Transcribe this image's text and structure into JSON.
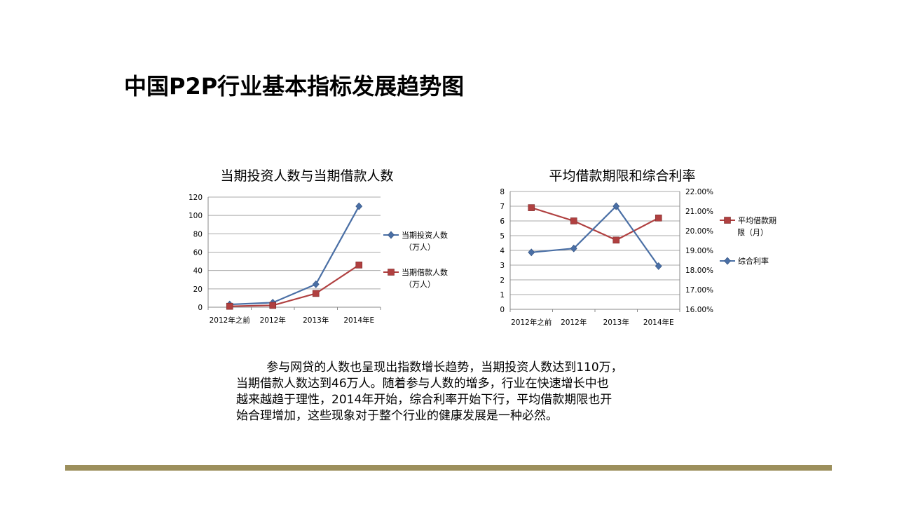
{
  "slide": {
    "title": "中国P2P行业基本指标发展趋势图",
    "paragraph": [
      "        参与网贷的人数也呈现出指数增长趋势，当期投资人数达到110万，",
      "当期借款人数达到46万人。随着参与人数的增多，行业在快速增长中也",
      "越来越趋于理性，2014年开始，综合利率开始下行，平均借款期限也开",
      "始合理增加，这些现象对于整个行业的健康发展是一种必然。"
    ],
    "footer_color": "#9c8f5c"
  },
  "chart_data": [
    {
      "type": "line",
      "title": "当期投资人数与当期借款人数",
      "categories": [
        "2012年之前",
        "2012年",
        "2013年",
        "2014年E"
      ],
      "ylim": [
        0,
        120
      ],
      "yticks": [
        0,
        20,
        40,
        60,
        80,
        100,
        120
      ],
      "grid": true,
      "legend_position": "right",
      "series": [
        {
          "name": [
            "当期投资人数",
            "（万人）"
          ],
          "values": [
            3,
            5,
            25,
            110
          ],
          "color": "#4a6fa5",
          "marker": "diamond"
        },
        {
          "name": [
            "当期借款人数",
            "（万人）"
          ],
          "values": [
            1,
            2,
            15,
            46
          ],
          "color": "#b04040",
          "marker": "square"
        }
      ]
    },
    {
      "type": "line",
      "title": "平均借款期限和综合利率",
      "categories": [
        "2012年之前",
        "2012年",
        "2013年",
        "2014年E"
      ],
      "ylim": [
        0,
        8
      ],
      "yticks": [
        "0",
        "1",
        "2",
        "3",
        "4",
        "5",
        "6",
        "7",
        "8"
      ],
      "y2lim": [
        16,
        22
      ],
      "y2ticks": [
        "16.00%",
        "17.00%",
        "18.00%",
        "19.00%",
        "20.00%",
        "21.00%",
        "22.00%"
      ],
      "grid": true,
      "legend_position": "right",
      "series": [
        {
          "name": [
            "平均借款期",
            "限（月）"
          ],
          "axis": "left",
          "values": [
            6.9,
            6.0,
            4.7,
            6.2
          ],
          "color": "#b04040",
          "marker": "square"
        },
        {
          "name": [
            "综合利率"
          ],
          "axis": "right",
          "values": [
            18.9,
            19.1,
            21.25,
            18.2
          ],
          "color": "#4a6fa5",
          "marker": "diamond"
        }
      ]
    }
  ]
}
